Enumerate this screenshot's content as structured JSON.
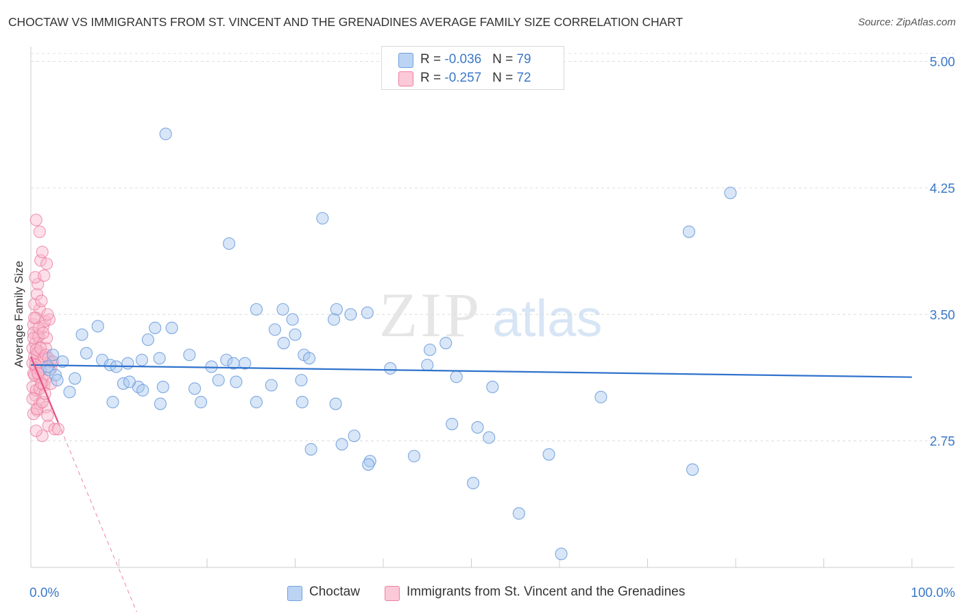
{
  "header": {
    "title": "CHOCTAW VS IMMIGRANTS FROM ST. VINCENT AND THE GRENADINES AVERAGE FAMILY SIZE CORRELATION CHART",
    "source": "Source: ZipAtlas.com"
  },
  "watermark": {
    "zip": "ZIP",
    "atlas": "atlas"
  },
  "legend": {
    "rows": [
      {
        "r_label": "R = ",
        "r_value": "-0.036",
        "n_label": "N = ",
        "n_value": "79"
      },
      {
        "r_label": "R = ",
        "r_value": "-0.257",
        "n_label": "N = ",
        "n_value": "72"
      }
    ]
  },
  "chart_data": {
    "type": "scatter",
    "title": "CHOCTAW VS IMMIGRANTS FROM ST. VINCENT AND THE GRENADINES AVERAGE FAMILY SIZE CORRELATION CHART",
    "xlabel": "",
    "ylabel": "Average Family Size",
    "xlim": [
      0,
      100
    ],
    "ylim": [
      2.0,
      5.12
    ],
    "x_tick_labels": [
      "0.0%",
      "100.0%"
    ],
    "y_ticks": [
      2.75,
      3.5,
      4.25,
      5.0
    ],
    "y_tick_labels": [
      "2.75",
      "3.50",
      "4.25",
      "5.00"
    ],
    "grid": true,
    "colors": {
      "choctaw_fill": "#a9c8f0",
      "choctaw_stroke": "#6f9fdc",
      "choctaw_line": "#2f72cc",
      "svg_fill": "#f8b7cc",
      "svg_stroke": "#ec7fa2",
      "svg_line": "#e44f82",
      "tick_label": "#3a78c9"
    },
    "series": [
      {
        "name": "Choctaw",
        "points": [
          [
            15.3,
            4.57
          ],
          [
            79.4,
            4.22
          ],
          [
            33.1,
            4.07
          ],
          [
            74.7,
            3.99
          ],
          [
            22.5,
            3.92
          ],
          [
            25.6,
            3.53
          ],
          [
            28.6,
            3.53
          ],
          [
            34.7,
            3.53
          ],
          [
            38.2,
            3.51
          ],
          [
            36.3,
            3.5
          ],
          [
            7.6,
            3.43
          ],
          [
            14.1,
            3.42
          ],
          [
            16.0,
            3.42
          ],
          [
            13.3,
            3.35
          ],
          [
            29.7,
            3.47
          ],
          [
            34.4,
            3.47
          ],
          [
            27.7,
            3.41
          ],
          [
            30.0,
            3.38
          ],
          [
            28.7,
            3.33
          ],
          [
            5.8,
            3.38
          ],
          [
            2.5,
            3.26
          ],
          [
            3.6,
            3.22
          ],
          [
            6.3,
            3.27
          ],
          [
            8.1,
            3.23
          ],
          [
            9.0,
            3.2
          ],
          [
            9.7,
            3.19
          ],
          [
            11.0,
            3.21
          ],
          [
            12.6,
            3.23
          ],
          [
            14.6,
            3.24
          ],
          [
            18.0,
            3.26
          ],
          [
            20.5,
            3.19
          ],
          [
            22.2,
            3.23
          ],
          [
            23.0,
            3.21
          ],
          [
            24.3,
            3.21
          ],
          [
            31.0,
            3.26
          ],
          [
            31.6,
            3.24
          ],
          [
            45.3,
            3.29
          ],
          [
            45.0,
            3.2
          ],
          [
            40.8,
            3.18
          ],
          [
            2.1,
            3.17
          ],
          [
            1.9,
            3.19
          ],
          [
            2.8,
            3.14
          ],
          [
            3.0,
            3.11
          ],
          [
            5.0,
            3.12
          ],
          [
            12.2,
            3.07
          ],
          [
            10.5,
            3.09
          ],
          [
            15.0,
            3.07
          ],
          [
            11.2,
            3.1
          ],
          [
            18.6,
            3.06
          ],
          [
            12.7,
            3.05
          ],
          [
            14.7,
            2.97
          ],
          [
            19.3,
            2.98
          ],
          [
            9.3,
            2.98
          ],
          [
            4.4,
            3.04
          ],
          [
            25.6,
            2.98
          ],
          [
            23.3,
            3.1
          ],
          [
            21.3,
            3.11
          ],
          [
            30.7,
            3.11
          ],
          [
            27.3,
            3.08
          ],
          [
            34.6,
            2.97
          ],
          [
            30.8,
            2.98
          ],
          [
            48.3,
            3.13
          ],
          [
            47.1,
            3.33
          ],
          [
            52.4,
            3.07
          ],
          [
            64.7,
            3.01
          ],
          [
            36.7,
            2.78
          ],
          [
            35.3,
            2.73
          ],
          [
            47.8,
            2.85
          ],
          [
            43.5,
            2.66
          ],
          [
            38.5,
            2.63
          ],
          [
            38.3,
            2.61
          ],
          [
            31.8,
            2.7
          ],
          [
            50.7,
            2.83
          ],
          [
            52.0,
            2.77
          ],
          [
            58.8,
            2.67
          ],
          [
            75.1,
            2.58
          ],
          [
            50.2,
            2.5
          ],
          [
            55.4,
            2.32
          ],
          [
            60.2,
            2.08
          ]
        ]
      },
      {
        "name": "Immigrants from St. Vincent and the Grenadines",
        "points": [
          [
            0.5,
            3.02
          ],
          [
            1.0,
            2.97
          ],
          [
            0.7,
            2.93
          ],
          [
            0.3,
            2.91
          ],
          [
            1.7,
            2.95
          ],
          [
            1.3,
            2.78
          ],
          [
            0.6,
            2.81
          ],
          [
            2.0,
            2.84
          ],
          [
            2.7,
            2.82
          ],
          [
            3.1,
            2.82
          ],
          [
            0.2,
            3.3
          ],
          [
            0.5,
            3.33
          ],
          [
            0.8,
            3.37
          ],
          [
            1.4,
            3.43
          ],
          [
            1.7,
            3.3
          ],
          [
            0.3,
            3.44
          ],
          [
            0.6,
            3.48
          ],
          [
            1.0,
            3.53
          ],
          [
            1.6,
            3.46
          ],
          [
            2.1,
            3.47
          ],
          [
            0.4,
            3.56
          ],
          [
            0.7,
            3.62
          ],
          [
            1.2,
            3.58
          ],
          [
            0.2,
            3.21
          ],
          [
            0.4,
            3.25
          ],
          [
            0.7,
            3.27
          ],
          [
            0.9,
            3.28
          ],
          [
            1.2,
            3.22
          ],
          [
            1.5,
            3.25
          ],
          [
            2.2,
            3.22
          ],
          [
            0.3,
            3.15
          ],
          [
            0.6,
            3.18
          ],
          [
            0.9,
            3.13
          ],
          [
            1.3,
            3.12
          ],
          [
            1.6,
            3.11
          ],
          [
            0.2,
            3.07
          ],
          [
            0.6,
            3.05
          ],
          [
            1.0,
            3.06
          ],
          [
            1.5,
            3.08
          ],
          [
            2.3,
            3.09
          ],
          [
            0.8,
            3.68
          ],
          [
            0.5,
            3.72
          ],
          [
            1.1,
            3.82
          ],
          [
            1.3,
            3.87
          ],
          [
            1.0,
            3.99
          ],
          [
            0.6,
            4.06
          ],
          [
            1.8,
            3.8
          ],
          [
            1.5,
            3.73
          ],
          [
            0.3,
            3.39
          ],
          [
            0.9,
            3.37
          ],
          [
            1.8,
            3.36
          ],
          [
            0.4,
            3.14
          ],
          [
            1.1,
            3.17
          ],
          [
            2.3,
            3.18
          ],
          [
            0.2,
            3.0
          ],
          [
            0.7,
            2.94
          ],
          [
            1.3,
            2.98
          ],
          [
            1.9,
            2.9
          ],
          [
            0.9,
            3.42
          ],
          [
            1.4,
            3.39
          ],
          [
            0.3,
            3.36
          ],
          [
            0.6,
            3.29
          ],
          [
            1.1,
            3.3
          ],
          [
            0.5,
            3.2
          ],
          [
            1.7,
            3.26
          ],
          [
            2.0,
            3.24
          ],
          [
            0.8,
            3.15
          ],
          [
            1.2,
            3.09
          ],
          [
            2.5,
            3.22
          ],
          [
            1.6,
            3.03
          ],
          [
            0.4,
            3.48
          ],
          [
            1.9,
            3.5
          ]
        ]
      }
    ],
    "trendlines": [
      {
        "series": "Choctaw",
        "x": [
          0,
          100
        ],
        "y": [
          3.2,
          3.128
        ]
      },
      {
        "series": "Immigrants from St. Vincent and the Grenadines",
        "solid_x": [
          0,
          3.1
        ],
        "dashed_x": [
          3.1,
          12.5
        ],
        "y_at": [
          3.25,
          -12.6
        ]
      }
    ]
  },
  "bottom_legend": {
    "items": [
      {
        "label": "Choctaw"
      },
      {
        "label": "Immigrants from St. Vincent and the Grenadines"
      }
    ]
  }
}
